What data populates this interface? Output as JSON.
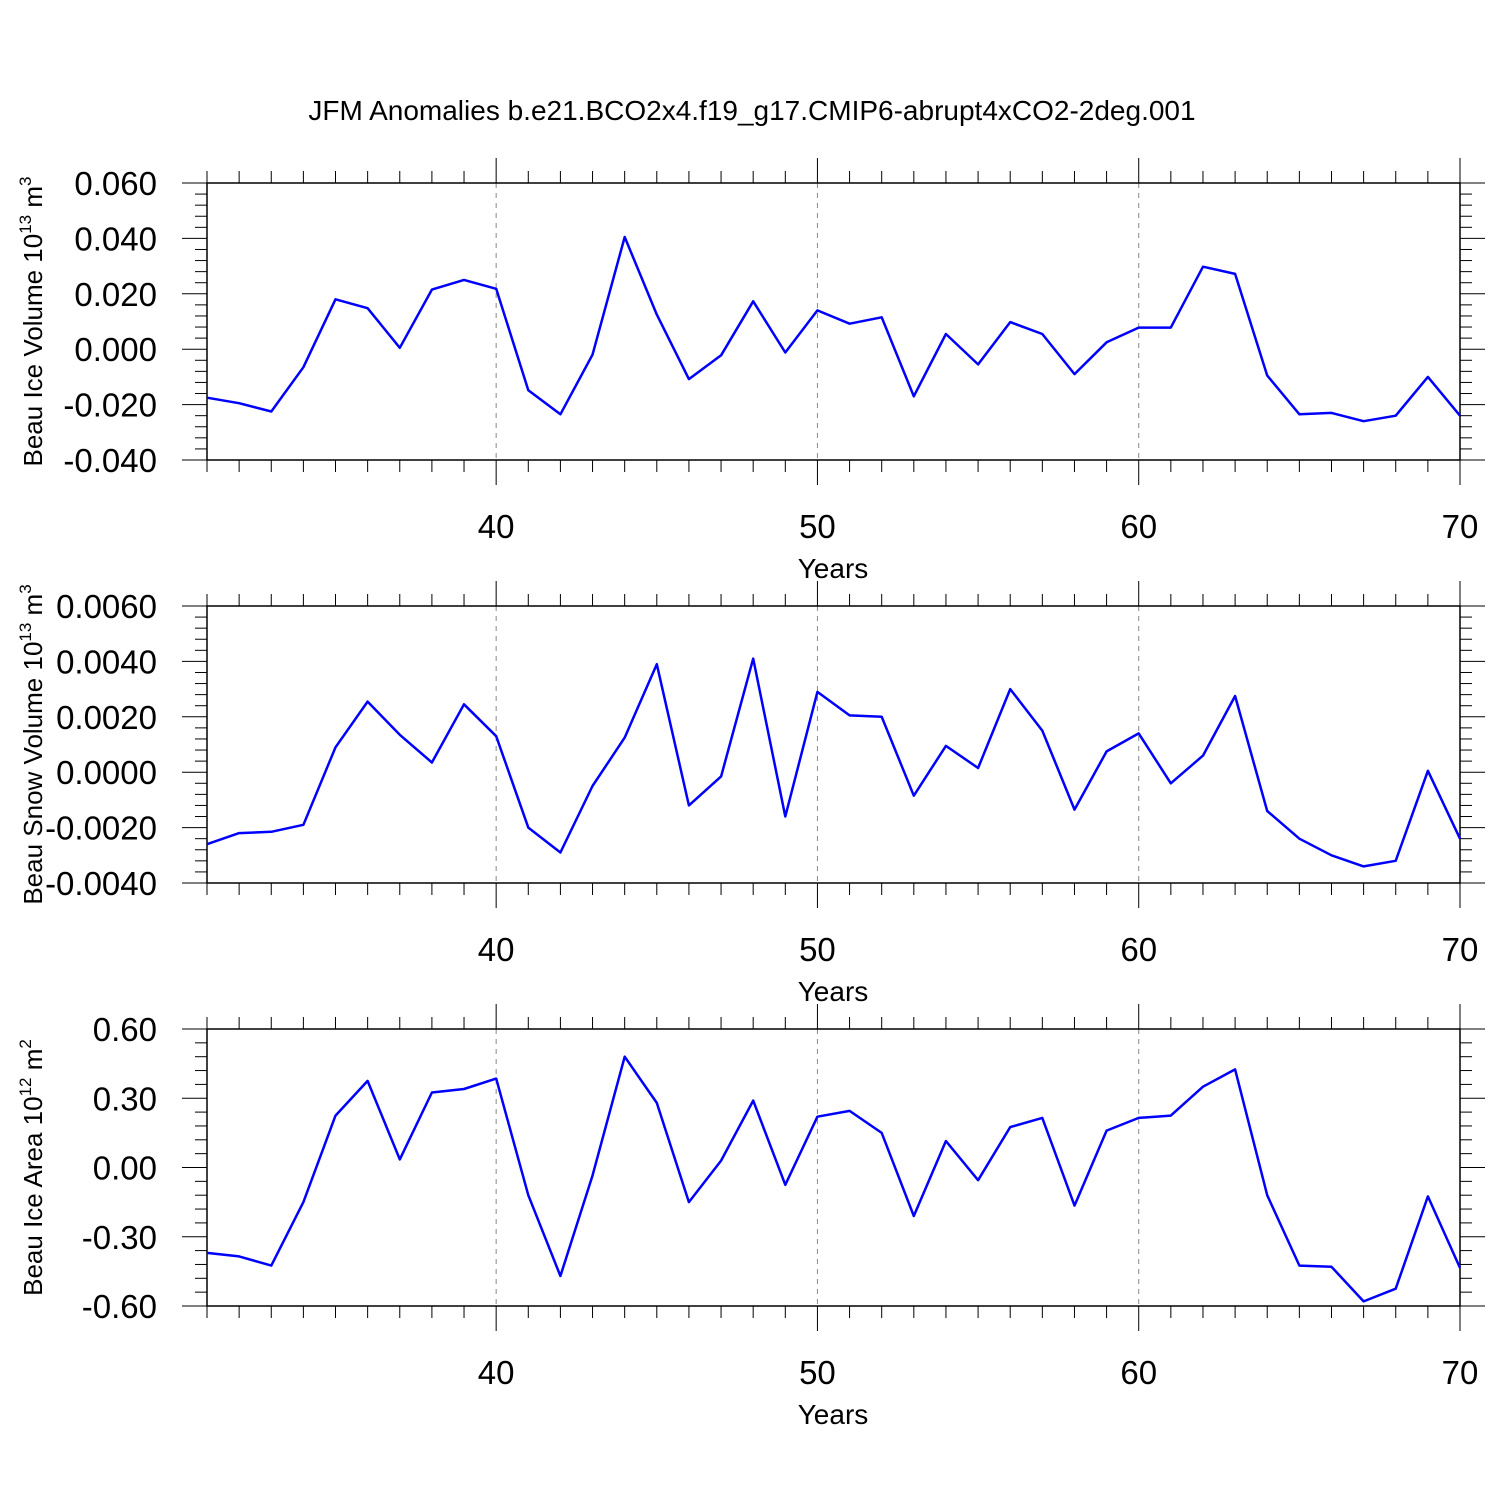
{
  "title": "JFM Anomalies b.e21.BCO2x4.f19_g17.CMIP6-abrupt4xCO2-2deg.001",
  "line_color": "#0000ff",
  "chart_data": [
    {
      "type": "line",
      "ylabel": "Beau Ice Volume 10",
      "ylabel_sup": "13",
      "ylabel_unit": "m",
      "ylabel_unit_sup": "3",
      "xlabel": "Years",
      "xlim": [
        31,
        70
      ],
      "ylim": [
        -0.04,
        0.06
      ],
      "xticks": [
        40,
        50,
        60,
        70
      ],
      "xtick_labels": [
        "40",
        "50",
        "60",
        "70"
      ],
      "yticks": [
        0.06,
        0.04,
        0.02,
        0.0,
        -0.02,
        -0.04
      ],
      "ytick_labels": [
        "0.060",
        "0.040",
        "0.020",
        "0.000",
        "-0.020",
        "-0.040"
      ],
      "grid_x": [
        40,
        50,
        60
      ],
      "x": [
        31,
        32,
        33,
        34,
        35,
        36,
        37,
        38,
        39,
        40,
        41,
        42,
        43,
        44,
        45,
        46,
        47,
        48,
        49,
        50,
        51,
        52,
        53,
        54,
        55,
        56,
        57,
        58,
        59,
        60,
        61,
        62,
        63,
        64,
        65,
        66,
        67,
        68,
        69,
        70
      ],
      "values": [
        -0.0175,
        -0.0195,
        -0.0225,
        -0.0065,
        0.018,
        0.0148,
        0.0005,
        0.0215,
        0.025,
        0.0218,
        -0.0148,
        -0.0235,
        -0.002,
        0.0405,
        0.0125,
        -0.0108,
        -0.0022,
        0.0173,
        -0.0012,
        0.014,
        0.0092,
        0.0115,
        -0.017,
        0.0055,
        -0.0055,
        0.0098,
        0.0055,
        -0.009,
        0.0025,
        0.0078,
        0.0078,
        0.0298,
        0.0272,
        -0.0095,
        -0.0235,
        -0.023,
        -0.026,
        -0.024,
        -0.01,
        -0.024
      ]
    },
    {
      "type": "line",
      "ylabel": "Beau Snow Volume 10",
      "ylabel_sup": "13",
      "ylabel_unit": "m",
      "ylabel_unit_sup": "3",
      "xlabel": "Years",
      "xlim": [
        31,
        70
      ],
      "ylim": [
        -0.004,
        0.006
      ],
      "xticks": [
        40,
        50,
        60,
        70
      ],
      "xtick_labels": [
        "40",
        "50",
        "60",
        "70"
      ],
      "yticks": [
        0.006,
        0.004,
        0.002,
        0.0,
        -0.002,
        -0.004
      ],
      "ytick_labels": [
        "0.0060",
        "0.0040",
        "0.0020",
        "0.0000",
        "-0.0020",
        "-0.0040"
      ],
      "grid_x": [
        40,
        50,
        60
      ],
      "x": [
        31,
        32,
        33,
        34,
        35,
        36,
        37,
        38,
        39,
        40,
        41,
        42,
        43,
        44,
        45,
        46,
        47,
        48,
        49,
        50,
        51,
        52,
        53,
        54,
        55,
        56,
        57,
        58,
        59,
        60,
        61,
        62,
        63,
        64,
        65,
        66,
        67,
        68,
        69,
        70
      ],
      "values": [
        -0.0026,
        -0.0022,
        -0.00215,
        -0.0019,
        0.0009,
        0.00255,
        0.00135,
        0.00035,
        0.00245,
        0.0013,
        -0.002,
        -0.0029,
        -0.0005,
        0.00125,
        0.0039,
        -0.0012,
        -0.00015,
        0.0041,
        -0.0016,
        0.0029,
        0.00205,
        0.002,
        -0.00085,
        0.00095,
        0.00015,
        0.003,
        0.0015,
        -0.00135,
        0.00075,
        0.0014,
        -0.0004,
        0.0006,
        0.00275,
        -0.0014,
        -0.0024,
        -0.003,
        -0.0034,
        -0.0032,
        5e-05,
        -0.0024
      ]
    },
    {
      "type": "line",
      "ylabel": "Beau Ice Area 10",
      "ylabel_sup": "12",
      "ylabel_unit": "m",
      "ylabel_unit_sup": "2",
      "xlabel": "Years",
      "xlim": [
        31,
        70
      ],
      "ylim": [
        -0.6,
        0.6
      ],
      "xticks": [
        40,
        50,
        60,
        70
      ],
      "xtick_labels": [
        "40",
        "50",
        "60",
        "70"
      ],
      "yticks": [
        0.6,
        0.3,
        0.0,
        -0.3,
        -0.6
      ],
      "ytick_labels": [
        "0.60",
        "0.30",
        "0.00",
        "-0.30",
        "-0.60"
      ],
      "grid_x": [
        40,
        50,
        60
      ],
      "x": [
        31,
        32,
        33,
        34,
        35,
        36,
        37,
        38,
        39,
        40,
        41,
        42,
        43,
        44,
        45,
        46,
        47,
        48,
        49,
        50,
        51,
        52,
        53,
        54,
        55,
        56,
        57,
        58,
        59,
        60,
        61,
        62,
        63,
        64,
        65,
        66,
        67,
        68,
        69,
        70
      ],
      "values": [
        -0.37,
        -0.385,
        -0.425,
        -0.15,
        0.225,
        0.375,
        0.035,
        0.325,
        0.34,
        0.385,
        -0.12,
        -0.47,
        -0.035,
        0.48,
        0.28,
        -0.15,
        0.03,
        0.29,
        -0.075,
        0.22,
        0.245,
        0.15,
        -0.21,
        0.115,
        -0.055,
        0.175,
        0.215,
        -0.165,
        0.16,
        0.215,
        0.225,
        0.35,
        0.425,
        -0.12,
        -0.425,
        -0.43,
        -0.58,
        -0.525,
        -0.125,
        -0.435
      ]
    }
  ]
}
